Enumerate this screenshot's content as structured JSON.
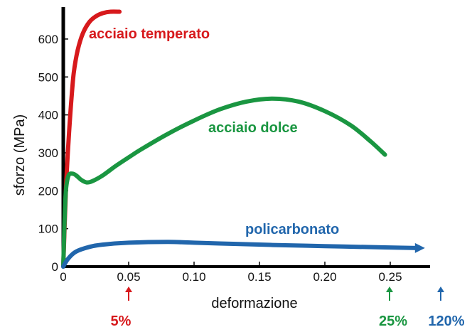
{
  "chart_data": {
    "type": "line",
    "title": "",
    "xlabel": "deformazione",
    "ylabel": "sforzo (MPa)",
    "xlim": [
      0,
      0.28
    ],
    "ylim": [
      0,
      700
    ],
    "x_ticks": [
      "0",
      "0.05",
      "0.10",
      "0.15",
      "0.20",
      "0.25"
    ],
    "x_tick_values": [
      0,
      0.05,
      0.1,
      0.15,
      0.2,
      0.25
    ],
    "y_ticks": [
      "0",
      "100",
      "200",
      "300",
      "400",
      "500",
      "600"
    ],
    "y_tick_values": [
      0,
      100,
      200,
      300,
      400,
      500,
      600
    ],
    "grid": false,
    "series": [
      {
        "name": "acciaio temperato",
        "color": "#d7191c",
        "x": [
          0,
          0.002,
          0.004,
          0.006,
          0.008,
          0.011,
          0.015,
          0.02,
          0.025,
          0.03,
          0.036,
          0.043
        ],
        "y": [
          0,
          200,
          330,
          430,
          510,
          570,
          615,
          645,
          660,
          668,
          672,
          672
        ]
      },
      {
        "name": "acciaio dolce",
        "color": "#1a9641",
        "x": [
          0,
          0.001,
          0.002,
          0.004,
          0.007,
          0.01,
          0.014,
          0.018,
          0.022,
          0.03,
          0.04,
          0.05,
          0.06,
          0.08,
          0.1,
          0.12,
          0.14,
          0.16,
          0.18,
          0.2,
          0.22,
          0.235,
          0.246
        ],
        "y": [
          0,
          120,
          200,
          240,
          245,
          240,
          228,
          222,
          225,
          240,
          265,
          288,
          310,
          350,
          385,
          415,
          435,
          443,
          435,
          410,
          372,
          330,
          295
        ]
      },
      {
        "name": "policarbonato",
        "color": "#2166ac",
        "x": [
          0,
          0.004,
          0.01,
          0.02,
          0.03,
          0.05,
          0.08,
          0.1,
          0.13,
          0.16,
          0.2,
          0.24,
          0.27
        ],
        "y": [
          0,
          22,
          40,
          52,
          58,
          63,
          65,
          63,
          60,
          57,
          54,
          51,
          49
        ]
      }
    ],
    "markers": [
      {
        "label": "5%",
        "x": 0.05,
        "color": "#d7191c"
      },
      {
        "label": "25%",
        "x": 0.25,
        "color": "#1a9641"
      },
      {
        "label": "120%",
        "x": 0.28,
        "color": "#2166ac"
      }
    ],
    "series_label_positions": [
      "top",
      "middle-right",
      "bottom-right"
    ]
  }
}
